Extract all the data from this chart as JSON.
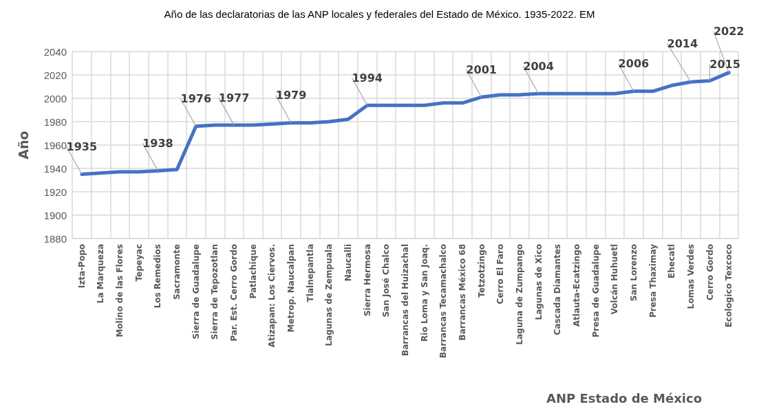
{
  "chart_data": {
    "type": "line",
    "title": "Año de las declaratorias de las ANP locales y federales del Estado de México. 1935-2022. EM",
    "xlabel": "ANP Estado de México",
    "ylabel": "Año",
    "categories": [
      "Izta-Popo",
      "La Marqueza",
      "Molino de las Flores",
      "Tepeyac",
      "Los Remedios",
      "Sacramonte",
      "Sierra de Guadalupe",
      "Sierra de Tepozotlan",
      "Par. Est. Cerro Gordo",
      "Patlachique",
      "Atizapan: Los Ciervos.",
      "Metrop. Naucalpan",
      "Tlalnepantla",
      "Lagunas de Zempuala",
      "Naucalli",
      "Sierra Hermosa",
      "San José Chalco",
      "Barrancas del Huizachal",
      "Rio Loma y San Joaq.",
      "Barrancas Tecamachalco",
      "Barrancas México 68",
      "Tetzotzingo",
      "Cerro El Faro",
      "Laguna de Zumpango",
      "Lagunas de Xico",
      "Cascada Diamantes",
      "Atlauta-Ecatzingo",
      "Presa de Guadalupe",
      "Volcán Huhuetl",
      "San Lorenzo",
      "Presa Thaximay",
      "Ehecatl",
      "Lomas Verdes",
      "Cerro Gordo",
      "Ecologico Texcoco"
    ],
    "series": [
      {
        "color": "#4472c4",
        "values": [
          1935,
          1936,
          1937,
          1937,
          1938,
          1939,
          1976,
          1977,
          1977,
          1977,
          1978,
          1979,
          1979,
          1980,
          1982,
          1994,
          1994,
          1994,
          1994,
          1996,
          1996,
          2001,
          2003,
          2003,
          2004,
          2004,
          2004,
          2004,
          2004,
          2006,
          2006,
          2011,
          2014,
          2015,
          2022
        ],
        "value_labels": [
          "1935",
          null,
          null,
          null,
          "1938",
          null,
          "1976",
          null,
          "1977",
          null,
          null,
          "1979",
          null,
          null,
          null,
          "1994",
          null,
          null,
          null,
          null,
          null,
          "2001",
          null,
          null,
          "2004",
          null,
          null,
          null,
          null,
          "2006",
          null,
          null,
          "2014",
          "2015",
          "2022"
        ]
      }
    ],
    "ylim": [
      1880,
      2040
    ],
    "yticks": [
      1880,
      1900,
      1920,
      1940,
      1960,
      1980,
      2000,
      2020,
      2040
    ],
    "grid": true,
    "marker": "none",
    "line_style": "solid"
  }
}
